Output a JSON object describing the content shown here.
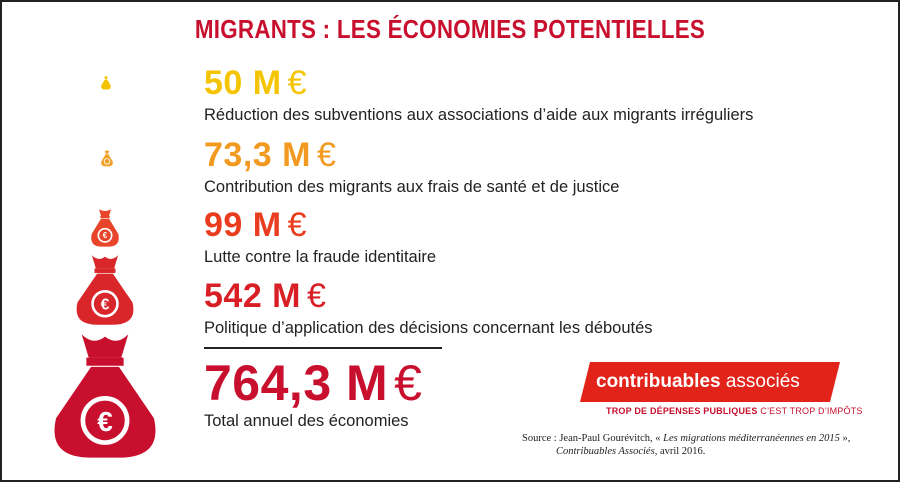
{
  "title": "MIGRANTS : LES ÉCONOMIES POTENTIELLES",
  "colors": {
    "title": "#c8102e",
    "amount_1": "#f5c400",
    "amount_2": "#f29a1f",
    "amount_3": "#ea3c1e",
    "amount_4": "#d91f26",
    "total": "#c8102e",
    "bag_1": "#f2c200",
    "bag_2": "#f0a028",
    "bag_3": "#e8452a",
    "bag_4": "#d9262a",
    "bag_5": "#c8102e"
  },
  "items": [
    {
      "amount": "50 M",
      "currency": "€",
      "label": "Réduction des subventions aux associations d’aide aux migrants irréguliers"
    },
    {
      "amount": "73,3 M",
      "currency": "€",
      "label": "Contribution des migrants aux frais de santé et de justice"
    },
    {
      "amount": "99 M",
      "currency": "€",
      "label": "Lutte contre la fraude identitaire"
    },
    {
      "amount": "542 M",
      "currency": "€",
      "label": "Politique d’application des décisions concernant les déboutés"
    }
  ],
  "total": {
    "amount": "764,3 M",
    "currency": "€",
    "label": "Total annuel des économies"
  },
  "icons": [
    "money-bag-euro-icon"
  ],
  "logo": {
    "name_bold": "contribuables",
    "name_light": "associés",
    "tagline_bold": "TROP DE DÉPENSES PUBLIQUES",
    "tagline_light": "C’EST TROP D’IMPÔTS"
  },
  "source": {
    "prefix": "Source : Jean-Paul Gourévitch, « ",
    "work": "Les migrations méditerranéennes en 2015",
    "suffix": " »,",
    "publisher": "Contribuables Associés",
    "date": ", avril 2016."
  }
}
